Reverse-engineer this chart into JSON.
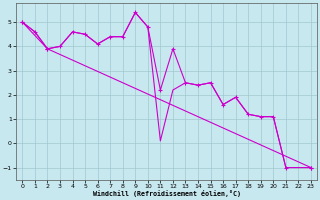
{
  "background_color": "#c8e8f0",
  "grid_color": "#a0c8d0",
  "line_color": "#cc00cc",
  "ylim": [
    -1.5,
    5.8
  ],
  "xlim": [
    -0.5,
    23.5
  ],
  "yticks": [
    -1,
    0,
    1,
    2,
    3,
    4,
    5
  ],
  "xticks": [
    0,
    1,
    2,
    3,
    4,
    5,
    6,
    7,
    8,
    9,
    10,
    11,
    12,
    13,
    14,
    15,
    16,
    17,
    18,
    19,
    20,
    21,
    22,
    23
  ],
  "xlabel": "Windchill (Refroidissement éolien,°C)",
  "curve1_x": [
    0,
    1,
    2,
    3,
    4,
    5,
    6,
    7,
    8,
    9,
    10,
    11,
    12,
    13,
    14,
    15,
    16,
    17,
    18,
    19,
    20,
    21,
    23
  ],
  "curve1_y": [
    5.0,
    4.6,
    3.9,
    4.0,
    4.6,
    4.5,
    4.1,
    4.4,
    4.4,
    5.4,
    4.8,
    2.2,
    3.9,
    2.5,
    2.4,
    2.5,
    1.6,
    1.9,
    1.2,
    1.1,
    1.1,
    -1.0,
    -1.0
  ],
  "curve2_x": [
    0,
    1,
    2,
    3,
    4,
    5,
    6,
    7,
    8,
    9,
    10,
    11,
    12,
    13,
    14,
    15,
    16,
    17,
    18,
    19,
    20,
    21,
    23
  ],
  "curve2_y": [
    5.0,
    4.6,
    3.9,
    4.0,
    4.6,
    4.5,
    4.1,
    4.4,
    4.4,
    5.4,
    4.8,
    0.1,
    2.2,
    2.5,
    2.4,
    2.5,
    1.6,
    1.9,
    1.2,
    1.1,
    1.1,
    -1.0,
    -1.0
  ],
  "curve3_x": [
    0,
    2,
    23
  ],
  "curve3_y": [
    5.0,
    3.9,
    -1.0
  ]
}
